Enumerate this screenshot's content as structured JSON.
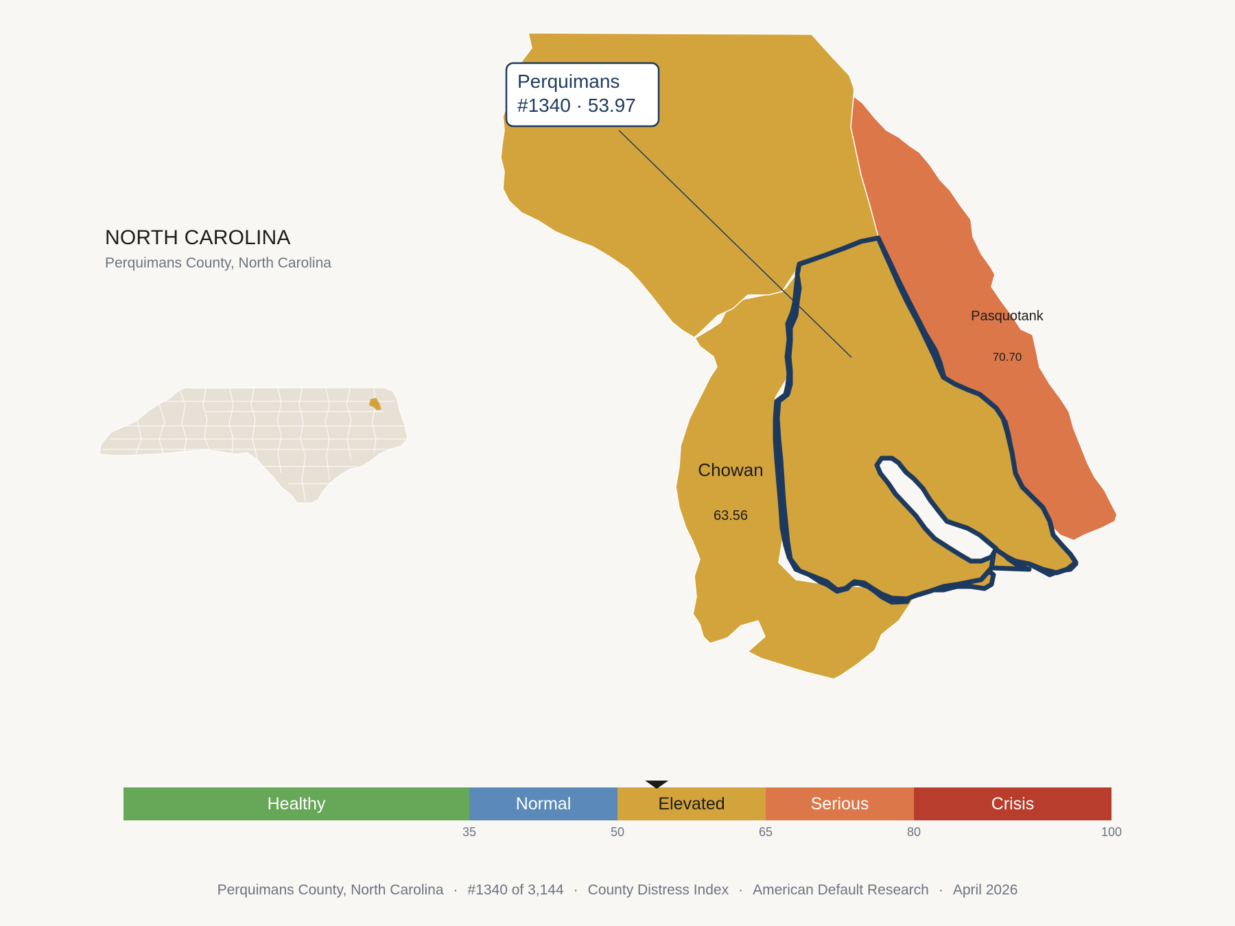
{
  "state": {
    "title": "NORTH CAROLINA",
    "subtitle": "Perquimans County, North Carolina"
  },
  "callout": {
    "county": "Perquimans",
    "detail": "#1340 · 53.97"
  },
  "counties": [
    {
      "name": "Perquimans",
      "score": 53.97,
      "category": "Elevated",
      "selected": true
    },
    {
      "name": "Chowan",
      "score_label": "63.56",
      "score": 63.56,
      "category": "Elevated"
    },
    {
      "name": "Pasquotank",
      "score_label": "70.70",
      "score": 70.7,
      "category": "Serious"
    }
  ],
  "scale": {
    "bands": [
      {
        "label": "Healthy",
        "from": 0,
        "to": 35,
        "color": "#67a758"
      },
      {
        "label": "Normal",
        "from": 35,
        "to": 50,
        "color": "#5b89b9"
      },
      {
        "label": "Elevated",
        "from": 50,
        "to": 65,
        "color": "#d3a43c"
      },
      {
        "label": "Serious",
        "from": 65,
        "to": 80,
        "color": "#dc774a"
      },
      {
        "label": "Crisis",
        "from": 80,
        "to": 100,
        "color": "#b93d2c"
      }
    ],
    "ticks": [
      "35",
      "50",
      "65",
      "80",
      "100"
    ],
    "marker_value": 53.97
  },
  "footer": {
    "county": "Perquimans County, North Carolina",
    "rank": "#1340 of 3,144",
    "index": "County Distress Index",
    "source": "American Default Research",
    "date": "April 2026"
  },
  "colors": {
    "elevated": "#d3a43c",
    "serious": "#dc774a",
    "highlight_border": "#1d3a5e",
    "inset_state": "#e7e1d5"
  }
}
